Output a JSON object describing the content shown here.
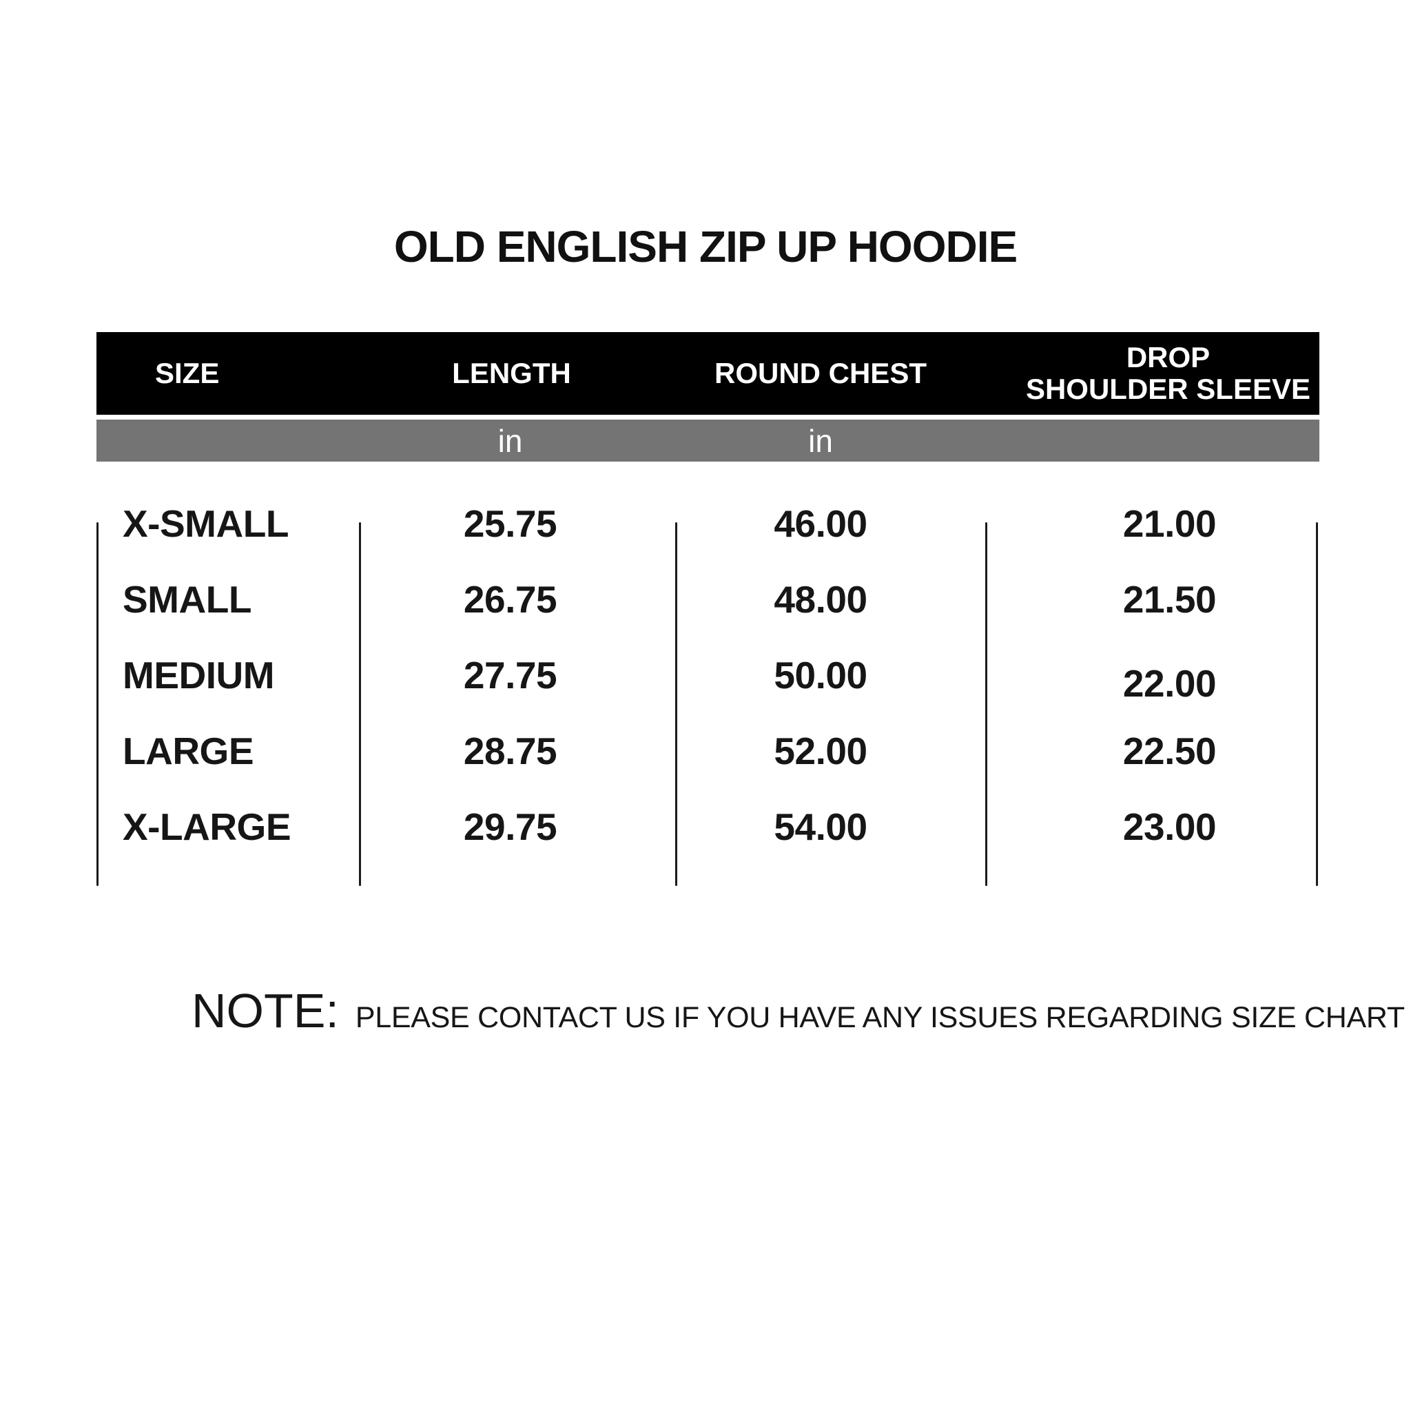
{
  "title": "OLD ENGLISH ZIP UP HOODIE",
  "table": {
    "headers": [
      "SIZE",
      "LENGTH",
      "ROUND CHEST",
      "DROP\nSHOULDER SLEEVE"
    ],
    "unit_row": {
      "length_unit": "in",
      "chest_unit": "in"
    },
    "rows": [
      {
        "size": "X-SMALL",
        "length": "25.75",
        "round_chest": "46.00",
        "drop_shoulder_sleeve": "21.00"
      },
      {
        "size": "SMALL",
        "length": "26.75",
        "round_chest": "48.00",
        "drop_shoulder_sleeve": "21.50"
      },
      {
        "size": "MEDIUM",
        "length": "27.75",
        "round_chest": "50.00",
        "drop_shoulder_sleeve": "22.00"
      },
      {
        "size": "LARGE",
        "length": "28.75",
        "round_chest": "52.00",
        "drop_shoulder_sleeve": "22.50"
      },
      {
        "size": "X-LARGE",
        "length": "29.75",
        "round_chest": "54.00",
        "drop_shoulder_sleeve": "23.00"
      }
    ]
  },
  "note": {
    "label": "NOTE:",
    "text": "PLEASE CONTACT US IF YOU HAVE ANY ISSUES REGARDING SIZE CHART"
  },
  "colors": {
    "header_bg": "#000000",
    "header_text": "#ffffff",
    "unit_bar_bg": "#747474",
    "text_dark": "#1a1a1a",
    "background": "#ffffff"
  },
  "chart_data": {
    "type": "table",
    "title": "OLD ENGLISH ZIP UP HOODIE",
    "columns": [
      "SIZE",
      "LENGTH (in)",
      "ROUND CHEST (in)",
      "DROP SHOULDER SLEEVE"
    ],
    "rows": [
      [
        "X-SMALL",
        25.75,
        46.0,
        21.0
      ],
      [
        "SMALL",
        26.75,
        48.0,
        21.5
      ],
      [
        "MEDIUM",
        27.75,
        50.0,
        22.0
      ],
      [
        "LARGE",
        28.75,
        52.0,
        22.5
      ],
      [
        "X-LARGE",
        29.75,
        54.0,
        23.0
      ]
    ],
    "note": "PLEASE CONTACT US IF YOU HAVE ANY ISSUES REGARDING SIZE CHART"
  }
}
